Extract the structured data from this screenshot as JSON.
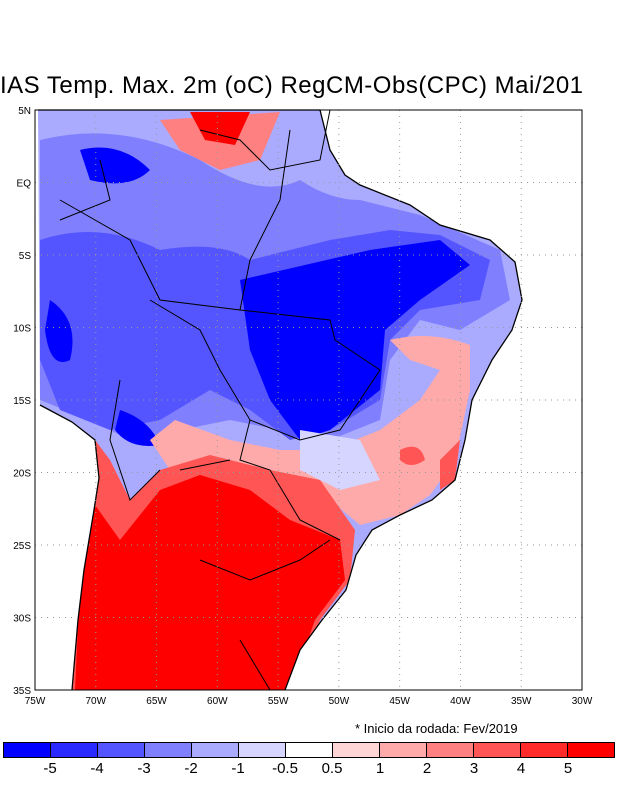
{
  "title": "IAS Temp. Max. 2m (oC) RegCM-Obs(CPC) Mai/201",
  "note": "* Inicio da rodada: Fev/2019",
  "lon_labels": [
    "75W",
    "70W",
    "65W",
    "60W",
    "55W",
    "50W",
    "45W",
    "40W",
    "35W",
    "30W"
  ],
  "lat_labels": [
    "5N",
    "EQ",
    "5S",
    "10S",
    "15S",
    "20S",
    "25S",
    "30S",
    "35S"
  ],
  "colorbar": {
    "colors": [
      "#0000ff",
      "#2a2aff",
      "#5555ff",
      "#8080ff",
      "#aaaaff",
      "#d5d5ff",
      "#ffffff",
      "#ffd5d5",
      "#ffaaaa",
      "#ff8080",
      "#ff5555",
      "#ff2a2a",
      "#ff0000"
    ],
    "labels": [
      "-5",
      "-4",
      "-3",
      "-2",
      "-1",
      "-0.5",
      "0.5",
      "1",
      "2",
      "3",
      "4",
      "5"
    ]
  }
}
